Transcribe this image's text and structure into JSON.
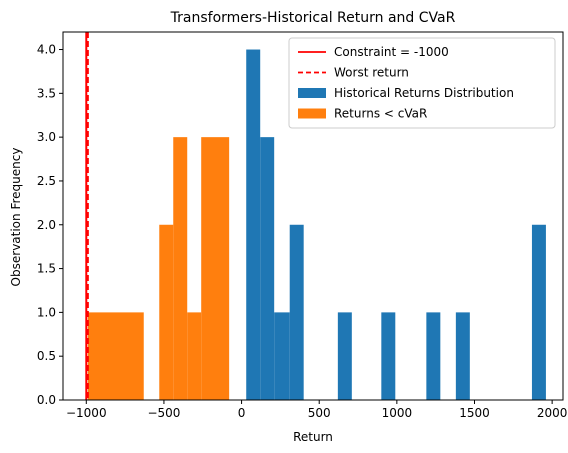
{
  "chart_data": {
    "type": "histogram",
    "title": "Transformers-Historical Return and CVaR",
    "xlabel": "Return",
    "ylabel": "Observation Frequency",
    "xlim": [
      -1150,
      2070
    ],
    "ylim": [
      0,
      4.2
    ],
    "xticks": [
      -1000,
      -500,
      0,
      500,
      1000,
      1500,
      2000
    ],
    "xtick_labels": [
      "−1000",
      "−500",
      "0",
      "500",
      "1000",
      "1500",
      "2000"
    ],
    "yticks": [
      0,
      0.5,
      1,
      1.5,
      2,
      2.5,
      3,
      3.5,
      4
    ],
    "ytick_labels": [
      "0.0",
      "0.5",
      "1.0",
      "1.5",
      "2.0",
      "2.5",
      "3.0",
      "3.5",
      "4.0"
    ],
    "series": [
      {
        "name": "Historical Returns Distribution",
        "color": "#1f77b4",
        "bins": [
          {
            "x0": 30,
            "x1": 120,
            "count": 4
          },
          {
            "x0": 120,
            "x1": 210,
            "count": 3
          },
          {
            "x0": 210,
            "x1": 310,
            "count": 1
          },
          {
            "x0": 310,
            "x1": 400,
            "count": 2
          },
          {
            "x0": 620,
            "x1": 710,
            "count": 1
          },
          {
            "x0": 900,
            "x1": 990,
            "count": 1
          },
          {
            "x0": 1190,
            "x1": 1280,
            "count": 1
          },
          {
            "x0": 1380,
            "x1": 1470,
            "count": 1
          },
          {
            "x0": 1870,
            "x1": 1960,
            "count": 2
          }
        ]
      },
      {
        "name": "Returns < cVaR",
        "color": "#ff7f0e",
        "bins": [
          {
            "x0": -990,
            "x1": -630,
            "count": 1
          },
          {
            "x0": -530,
            "x1": -440,
            "count": 2
          },
          {
            "x0": -440,
            "x1": -350,
            "count": 3
          },
          {
            "x0": -350,
            "x1": -260,
            "count": 1
          },
          {
            "x0": -260,
            "x1": -80,
            "count": 3
          }
        ]
      }
    ],
    "vlines": [
      {
        "name": "Constraint = -1000",
        "x": -1000,
        "color": "#ff0000",
        "style": "solid"
      },
      {
        "name": "Worst return",
        "x": -990,
        "color": "#ff0000",
        "style": "dashed"
      }
    ],
    "legend": {
      "position": "top-right",
      "entries": [
        {
          "label": "Constraint = -1000",
          "kind": "line",
          "color": "#ff0000",
          "style": "solid"
        },
        {
          "label": "Worst return",
          "kind": "line",
          "color": "#ff0000",
          "style": "dashed"
        },
        {
          "label": "Historical Returns Distribution",
          "kind": "patch",
          "color": "#1f77b4"
        },
        {
          "label": "Returns < cVaR",
          "kind": "patch",
          "color": "#ff7f0e"
        }
      ]
    }
  }
}
